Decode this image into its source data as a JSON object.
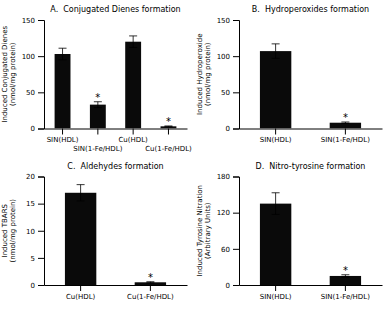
{
  "chart_data": [
    {
      "type": "bar",
      "title": "A.  Conjugated Dienes formation",
      "ylabel": "Induced Conjugated Dienes\n(nmol/mg protein)",
      "categories": [
        "SIN(HDL)",
        "SIN(1-Fe/HDL)",
        "Cu(HDL)",
        "Cu(1-Fe/HDL)"
      ],
      "values": [
        103,
        33,
        120,
        3
      ],
      "errors": [
        8,
        4,
        8,
        0.5
      ],
      "color": "#0a0a0a",
      "ylim": [
        0,
        150
      ],
      "yticks": [
        0,
        50,
        100,
        150
      ],
      "grid": false,
      "annotations": [
        {
          "text": "*",
          "x": "SIN(1-Fe/HDL)"
        },
        {
          "text": "*",
          "x": "Cu(1-Fe/HDL)"
        }
      ]
    },
    {
      "type": "bar",
      "title": "B.  Hydroperoxides formation",
      "ylabel": "Induced Hydroperoxide\n(nmol/mg protein)",
      "categories": [
        "SIN(HDL)",
        "SIN(1-Fe/HDL)"
      ],
      "values": [
        107,
        8
      ],
      "errors": [
        10,
        1
      ],
      "color": "#0a0a0a",
      "ylim": [
        0,
        150
      ],
      "yticks": [
        0,
        50,
        100,
        150
      ],
      "grid": false,
      "annotations": [
        {
          "text": "*",
          "x": "SIN(1-Fe/HDL)"
        }
      ]
    },
    {
      "type": "bar",
      "title": "C.  Aldehydes formation",
      "ylabel": "Induced TBARS\n(nmol/mg protein)",
      "categories": [
        "Cu(HDL)",
        "Cu(1-Fe/HDL)"
      ],
      "values": [
        17,
        0.5
      ],
      "errors": [
        1.5,
        0.1
      ],
      "color": "#0a0a0a",
      "ylim": [
        0,
        20
      ],
      "yticks": [
        0,
        5,
        10,
        15,
        20
      ],
      "grid": false,
      "annotations": [
        {
          "text": "*",
          "x": "Cu(1-Fe/HDL)"
        }
      ]
    },
    {
      "type": "bar",
      "title": "D.  Nitro-tyrosine formation",
      "ylabel": "Induced Tyrosine Nitration\n(Arbitrary Units)",
      "categories": [
        "SIN(HDL)",
        "SIN(1-Fe/HDL)"
      ],
      "values": [
        135,
        15
      ],
      "errors": [
        18,
        2
      ],
      "color": "#0a0a0a",
      "ylim": [
        0,
        180
      ],
      "yticks": [
        0,
        60,
        120,
        180
      ],
      "grid": false,
      "annotations": [
        {
          "text": "*",
          "x": "SIN(1-Fe/HDL)"
        }
      ]
    }
  ]
}
